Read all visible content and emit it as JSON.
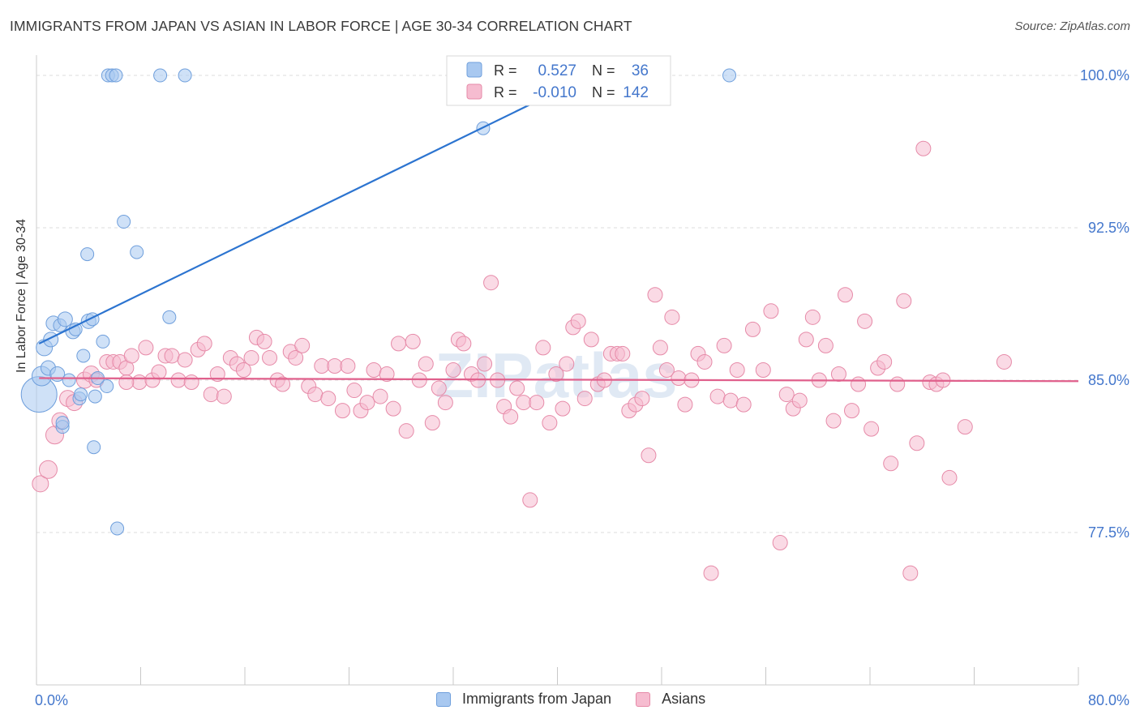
{
  "title": "IMMIGRANTS FROM JAPAN VS ASIAN IN LABOR FORCE | AGE 30-34 CORRELATION CHART",
  "source": "Source: ZipAtlas.com",
  "watermark": "ZIPatlas",
  "colors": {
    "blue_fill": "#a8c8f0",
    "blue_stroke": "#6f9fdc",
    "blue_line": "#2c74d0",
    "pink_fill": "#f6bcd0",
    "pink_stroke": "#e68aa8",
    "pink_line": "#e0608c",
    "axis_label": "#4477cc",
    "grid": "#dedede"
  },
  "legend_box": {
    "rows": [
      {
        "r_label": "R =",
        "r_value": "0.527",
        "n_label": "N =",
        "n_value": "36"
      },
      {
        "r_label": "R =",
        "r_value": "-0.010",
        "n_label": "N =",
        "n_value": "142"
      }
    ]
  },
  "legend_bottom": [
    "Immigrants from Japan",
    "Asians"
  ],
  "chart_data": {
    "type": "scatter",
    "xlabel": "",
    "ylabel": "In Labor Force | Age 30-34",
    "xlim": [
      0,
      80
    ],
    "ylim": [
      70,
      100.6
    ],
    "x_tick_labels": [
      "0.0%",
      "80.0%"
    ],
    "y_ticks": [
      77.5,
      85.0,
      92.5,
      100.0
    ],
    "y_tick_labels": [
      "77.5%",
      "85.0%",
      "92.5%",
      "100.0%"
    ],
    "grid": true,
    "series": [
      {
        "name": "Immigrants from Japan",
        "R": 0.527,
        "N": 36,
        "trend": {
          "x": [
            0.2,
            42.5
          ],
          "y": [
            86.8,
            100.0
          ]
        },
        "points": [
          [
            0.2,
            84.3,
            22
          ],
          [
            0.4,
            85.2,
            12
          ],
          [
            0.6,
            86.6,
            10
          ],
          [
            0.9,
            85.6,
            9
          ],
          [
            1.1,
            87.0,
            9
          ],
          [
            1.3,
            87.8,
            9
          ],
          [
            1.6,
            85.3,
            9
          ],
          [
            1.8,
            87.7,
            8
          ],
          [
            2.2,
            88.0,
            9
          ],
          [
            2.5,
            85.0,
            8
          ],
          [
            2.8,
            87.4,
            9
          ],
          [
            3.0,
            87.5,
            8
          ],
          [
            3.3,
            84.1,
            8
          ],
          [
            3.6,
            86.2,
            8
          ],
          [
            2.0,
            82.7,
            8
          ],
          [
            2.0,
            82.9,
            8
          ],
          [
            3.4,
            84.3,
            8
          ],
          [
            4.0,
            87.9,
            9
          ],
          [
            4.3,
            88.0,
            8
          ],
          [
            4.5,
            84.2,
            8
          ],
          [
            4.4,
            81.7,
            8
          ],
          [
            5.1,
            86.9,
            8
          ],
          [
            5.4,
            84.7,
            8
          ],
          [
            3.9,
            91.2,
            8
          ],
          [
            6.7,
            92.8,
            8
          ],
          [
            7.7,
            91.3,
            8
          ],
          [
            10.2,
            88.1,
            8
          ],
          [
            6.2,
            77.7,
            8
          ],
          [
            5.5,
            100.0,
            8
          ],
          [
            5.8,
            100.0,
            8
          ],
          [
            6.1,
            100.0,
            8
          ],
          [
            9.5,
            100.0,
            8
          ],
          [
            11.4,
            100.0,
            8
          ],
          [
            34.3,
            97.4,
            8
          ],
          [
            53.2,
            100.0,
            8
          ],
          [
            4.7,
            85.1,
            8
          ]
        ]
      },
      {
        "name": "Asians",
        "R": -0.01,
        "N": 142,
        "trend": {
          "x": [
            0.2,
            80.0
          ],
          "y": [
            85.1,
            84.95
          ]
        },
        "points": [
          [
            0.3,
            79.9,
            10
          ],
          [
            0.9,
            80.6,
            11
          ],
          [
            1.4,
            82.3,
            11
          ],
          [
            1.8,
            83.0,
            10
          ],
          [
            2.4,
            84.1,
            10
          ],
          [
            2.9,
            83.9,
            10
          ],
          [
            3.7,
            85.0,
            10
          ],
          [
            4.2,
            85.3,
            10
          ],
          [
            4.6,
            85.0,
            9
          ],
          [
            5.4,
            85.9,
            9
          ],
          [
            5.9,
            85.9,
            9
          ],
          [
            6.4,
            85.9,
            9
          ],
          [
            6.9,
            85.6,
            9
          ],
          [
            7.3,
            86.2,
            9
          ],
          [
            7.9,
            84.9,
            9
          ],
          [
            8.4,
            86.6,
            9
          ],
          [
            8.9,
            85.0,
            9
          ],
          [
            9.4,
            85.4,
            9
          ],
          [
            9.9,
            86.2,
            9
          ],
          [
            10.4,
            86.2,
            9
          ],
          [
            10.9,
            85.0,
            9
          ],
          [
            11.4,
            86.0,
            9
          ],
          [
            11.9,
            84.9,
            9
          ],
          [
            12.4,
            86.5,
            9
          ],
          [
            12.9,
            86.8,
            9
          ],
          [
            13.4,
            84.3,
            9
          ],
          [
            13.9,
            85.3,
            9
          ],
          [
            14.4,
            84.2,
            9
          ],
          [
            14.9,
            86.1,
            9
          ],
          [
            15.4,
            85.8,
            9
          ],
          [
            15.9,
            85.5,
            9
          ],
          [
            16.5,
            86.1,
            9
          ],
          [
            16.9,
            87.1,
            9
          ],
          [
            17.5,
            86.9,
            9
          ],
          [
            17.9,
            86.1,
            9
          ],
          [
            18.5,
            85.0,
            9
          ],
          [
            18.9,
            84.8,
            9
          ],
          [
            19.5,
            86.4,
            9
          ],
          [
            19.9,
            86.1,
            9
          ],
          [
            20.4,
            86.7,
            9
          ],
          [
            20.9,
            84.7,
            9
          ],
          [
            21.4,
            84.3,
            9
          ],
          [
            21.9,
            85.7,
            9
          ],
          [
            22.4,
            84.1,
            9
          ],
          [
            22.9,
            85.7,
            9
          ],
          [
            23.5,
            83.5,
            9
          ],
          [
            23.9,
            85.7,
            9
          ],
          [
            24.4,
            84.5,
            9
          ],
          [
            24.9,
            83.5,
            9
          ],
          [
            25.4,
            83.9,
            9
          ],
          [
            25.9,
            85.5,
            9
          ],
          [
            26.4,
            84.2,
            9
          ],
          [
            26.9,
            85.3,
            9
          ],
          [
            27.4,
            83.6,
            9
          ],
          [
            27.8,
            86.8,
            9
          ],
          [
            28.4,
            82.5,
            9
          ],
          [
            28.9,
            86.9,
            9
          ],
          [
            29.4,
            85.0,
            9
          ],
          [
            29.9,
            85.8,
            9
          ],
          [
            30.4,
            82.9,
            9
          ],
          [
            30.9,
            84.6,
            9
          ],
          [
            31.4,
            83.9,
            9
          ],
          [
            32.0,
            85.5,
            9
          ],
          [
            32.4,
            87.0,
            9
          ],
          [
            32.8,
            86.8,
            9
          ],
          [
            33.4,
            85.3,
            9
          ],
          [
            33.9,
            85.0,
            9
          ],
          [
            34.4,
            85.8,
            9
          ],
          [
            34.9,
            89.8,
            9
          ],
          [
            35.4,
            85.0,
            9
          ],
          [
            35.9,
            83.7,
            9
          ],
          [
            36.4,
            83.2,
            9
          ],
          [
            36.9,
            84.6,
            9
          ],
          [
            37.4,
            83.9,
            9
          ],
          [
            37.9,
            79.1,
            9
          ],
          [
            38.4,
            83.9,
            9
          ],
          [
            38.9,
            86.6,
            9
          ],
          [
            39.4,
            82.9,
            9
          ],
          [
            39.9,
            85.3,
            9
          ],
          [
            40.4,
            83.6,
            9
          ],
          [
            40.7,
            85.8,
            9
          ],
          [
            41.2,
            87.6,
            9
          ],
          [
            41.6,
            87.9,
            9
          ],
          [
            42.1,
            84.1,
            9
          ],
          [
            42.6,
            87.0,
            9
          ],
          [
            43.1,
            84.8,
            9
          ],
          [
            43.6,
            85.0,
            9
          ],
          [
            44.1,
            86.3,
            9
          ],
          [
            44.6,
            86.3,
            9
          ],
          [
            45.0,
            86.3,
            9
          ],
          [
            45.5,
            83.5,
            9
          ],
          [
            46.0,
            83.8,
            9
          ],
          [
            46.5,
            84.1,
            9
          ],
          [
            47.0,
            81.3,
            9
          ],
          [
            47.5,
            89.2,
            9
          ],
          [
            47.9,
            86.6,
            9
          ],
          [
            48.4,
            85.5,
            9
          ],
          [
            48.8,
            88.1,
            9
          ],
          [
            49.3,
            85.1,
            9
          ],
          [
            49.8,
            83.8,
            9
          ],
          [
            50.3,
            85.0,
            9
          ],
          [
            50.8,
            86.3,
            9
          ],
          [
            51.3,
            85.9,
            9
          ],
          [
            51.8,
            75.5,
            9
          ],
          [
            52.3,
            84.2,
            9
          ],
          [
            52.8,
            86.7,
            9
          ],
          [
            53.3,
            84.0,
            9
          ],
          [
            53.8,
            85.5,
            9
          ],
          [
            54.3,
            83.8,
            9
          ],
          [
            55.0,
            87.5,
            9
          ],
          [
            55.8,
            85.5,
            9
          ],
          [
            56.4,
            88.4,
            9
          ],
          [
            57.1,
            77.0,
            9
          ],
          [
            57.6,
            84.3,
            9
          ],
          [
            58.1,
            83.6,
            9
          ],
          [
            58.6,
            84.0,
            9
          ],
          [
            59.1,
            87.0,
            9
          ],
          [
            59.6,
            88.1,
            9
          ],
          [
            60.1,
            85.0,
            9
          ],
          [
            60.6,
            86.7,
            9
          ],
          [
            61.2,
            83.0,
            9
          ],
          [
            61.6,
            85.3,
            9
          ],
          [
            62.1,
            89.2,
            9
          ],
          [
            62.6,
            83.5,
            9
          ],
          [
            63.1,
            84.8,
            9
          ],
          [
            63.6,
            87.9,
            9
          ],
          [
            64.1,
            82.6,
            9
          ],
          [
            64.6,
            85.6,
            9
          ],
          [
            65.1,
            85.9,
            9
          ],
          [
            65.6,
            80.9,
            9
          ],
          [
            66.1,
            84.8,
            9
          ],
          [
            66.6,
            88.9,
            9
          ],
          [
            67.1,
            75.5,
            9
          ],
          [
            67.6,
            81.9,
            9
          ],
          [
            68.1,
            96.4,
            9
          ],
          [
            68.6,
            84.9,
            9
          ],
          [
            69.1,
            84.8,
            9
          ],
          [
            69.6,
            85.0,
            9
          ],
          [
            70.1,
            80.2,
            9
          ],
          [
            71.3,
            82.7,
            9
          ],
          [
            74.3,
            85.9,
            9
          ],
          [
            6.9,
            84.9,
            9
          ]
        ]
      }
    ]
  }
}
